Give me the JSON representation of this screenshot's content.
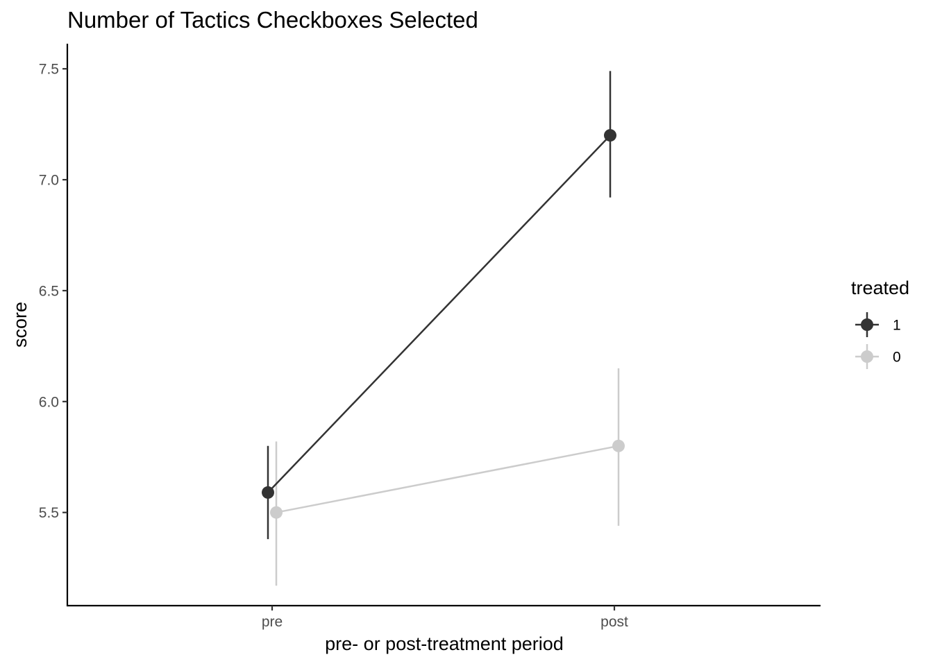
{
  "chart_data": {
    "type": "line",
    "title": "Number of Tactics Checkboxes Selected",
    "xlabel": "pre- or post-treatment period",
    "ylabel": "score",
    "categories": [
      "pre",
      "post"
    ],
    "ylim": [
      5.08,
      7.61
    ],
    "yticks": [
      "5.5",
      "6.0",
      "6.5",
      "7.0",
      "7.5"
    ],
    "grid": false,
    "legend": {
      "title": "treated",
      "placement": "right"
    },
    "series": [
      {
        "name": "1",
        "color": "#333333",
        "values": [
          5.59,
          7.2
        ],
        "lower": [
          5.38,
          6.92
        ],
        "upper": [
          5.8,
          7.49
        ]
      },
      {
        "name": "0",
        "color": "#cccccc",
        "values": [
          5.5,
          5.8
        ],
        "lower": [
          5.17,
          5.44
        ],
        "upper": [
          5.82,
          6.15
        ]
      }
    ]
  }
}
